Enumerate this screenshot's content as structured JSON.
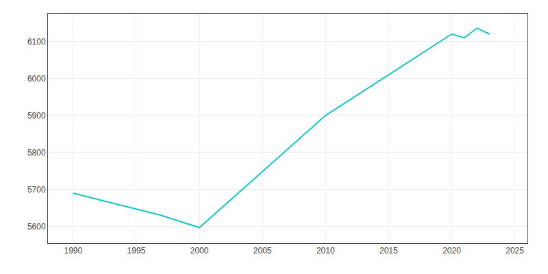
{
  "chart_data": {
    "type": "line",
    "x": [
      1990,
      1997,
      2000,
      2010,
      2020,
      2021,
      2022,
      2023
    ],
    "values": [
      5690,
      5630,
      5597,
      5900,
      6120,
      6110,
      6136,
      6120
    ],
    "color": "#17c3c3",
    "xlim": [
      1988,
      2026
    ],
    "ylim": [
      5555,
      6175
    ],
    "xticks": [
      1990,
      1995,
      2000,
      2005,
      2010,
      2015,
      2020,
      2025
    ],
    "yticks": [
      5600,
      5700,
      5800,
      5900,
      6000,
      6100
    ],
    "grid": true
  }
}
